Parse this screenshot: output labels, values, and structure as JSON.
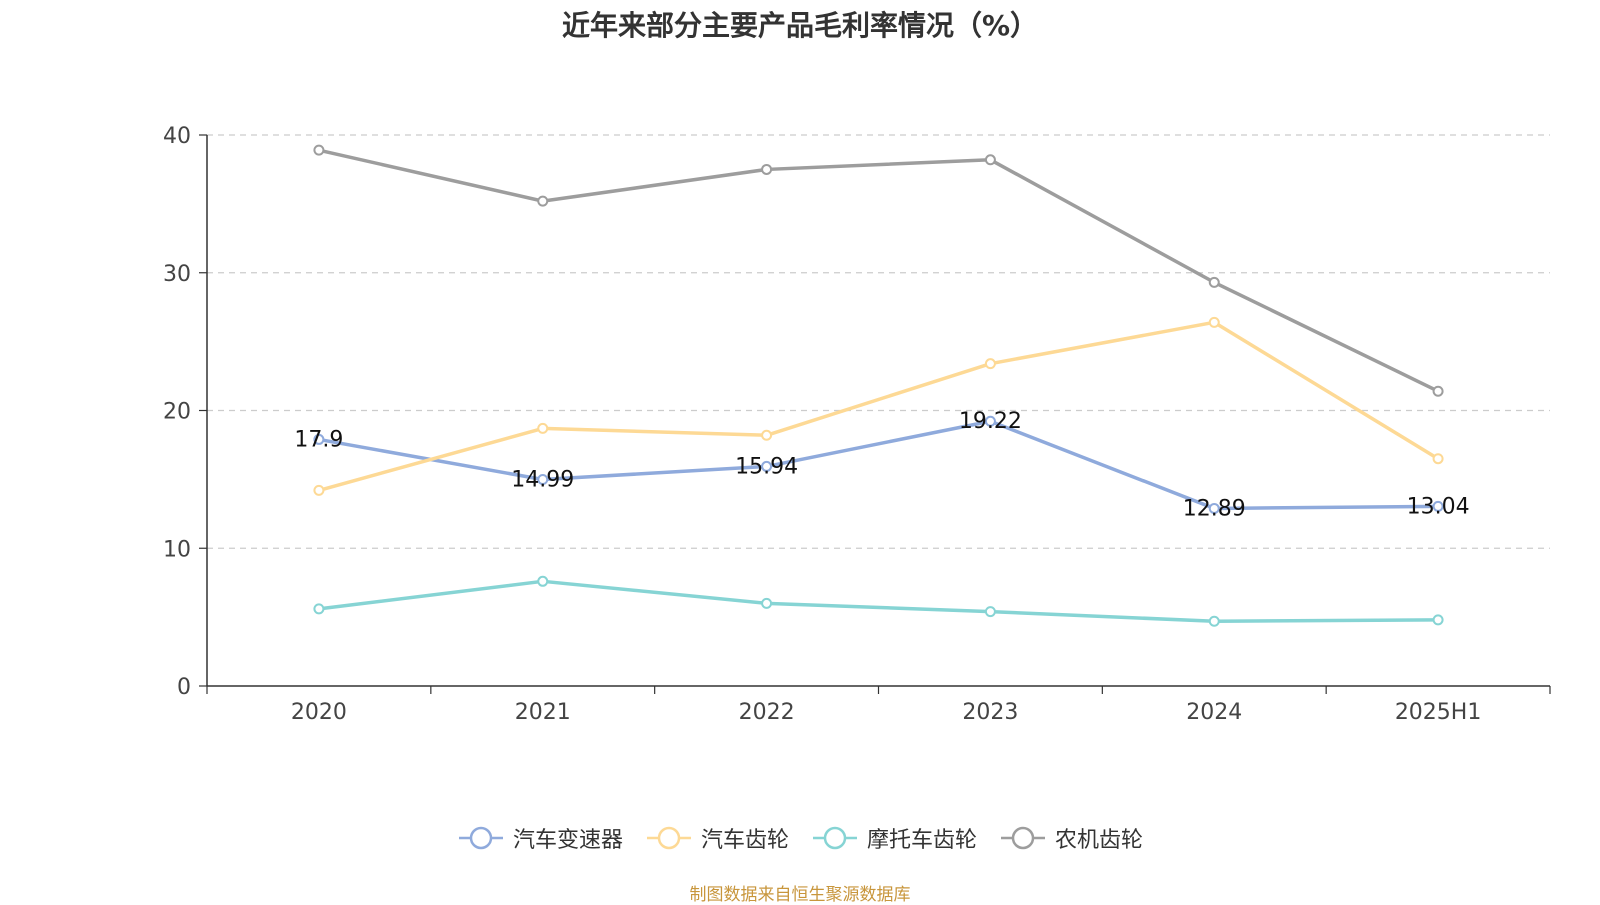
{
  "chart_data": {
    "type": "line",
    "title": "近年来部分主要产品毛利率情况（%）",
    "categories": [
      "2020",
      "2021",
      "2022",
      "2023",
      "2024",
      "2025H1"
    ],
    "ylim": [
      0,
      40
    ],
    "yticks": [
      0,
      10,
      20,
      30,
      40
    ],
    "grid": true,
    "legend_position": "bottom",
    "series": [
      {
        "name": "汽车变速器",
        "color": "#8faadc",
        "values": [
          17.9,
          14.99,
          15.94,
          19.22,
          12.89,
          13.04
        ],
        "labeled": true
      },
      {
        "name": "汽车齿轮",
        "color": "#fdd995",
        "values": [
          14.2,
          18.7,
          18.2,
          23.4,
          26.4,
          16.5
        ],
        "labeled": false
      },
      {
        "name": "摩托车齿轮",
        "color": "#86d4d4",
        "values": [
          5.6,
          7.6,
          6.0,
          5.4,
          4.7,
          4.8
        ],
        "labeled": false
      },
      {
        "name": "农机齿轮",
        "color": "#9d9d9d",
        "values": [
          38.9,
          35.2,
          37.5,
          38.2,
          29.3,
          21.4
        ],
        "labeled": false
      }
    ]
  },
  "source_note": "制图数据来自恒生聚源数据库"
}
